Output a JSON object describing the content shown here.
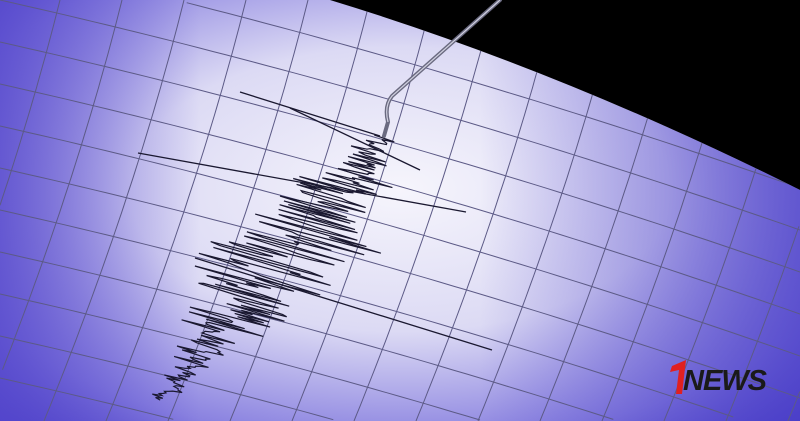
{
  "image": {
    "subject": "seismograph",
    "colors": {
      "paper_light": "#f4f3fb",
      "paper_shade": "#5a4fd0",
      "trace": "#1a1830",
      "grid": "#5c5a86",
      "background": "#000000"
    }
  },
  "logo": {
    "text": "1NEWS",
    "numeral": "1",
    "word": "NEWS",
    "numeral_color": "#e02020",
    "word_color": "#1a1a1a"
  }
}
